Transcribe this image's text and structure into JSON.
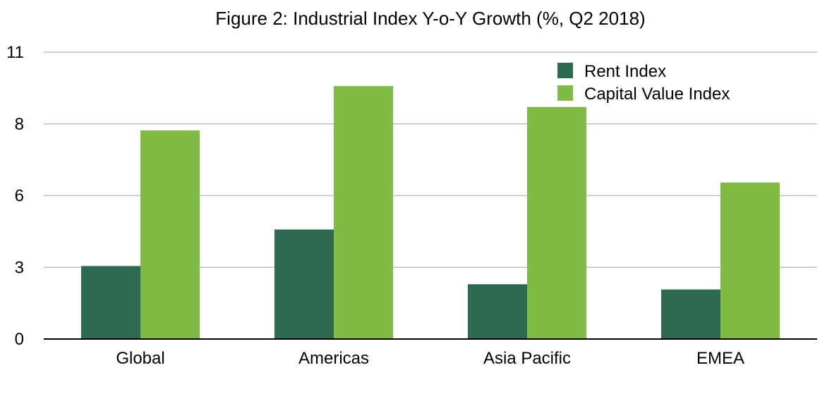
{
  "chart_data": {
    "type": "bar",
    "title": "Figure 2: Industrial Index Y-o-Y Growth (%, Q2 2018)",
    "xlabel": "",
    "ylabel": "",
    "categories": [
      "Global",
      "Americas",
      "Asia Pacific",
      "EMEA"
    ],
    "series": [
      {
        "name": "Rent Index",
        "values": [
          2.8,
          4.2,
          2.1,
          1.9
        ],
        "color": "#2d6a4f"
      },
      {
        "name": "Capital Value Index",
        "values": [
          8.0,
          9.7,
          8.9,
          6.0
        ],
        "color": "#7fbb45"
      }
    ],
    "yticks": [
      {
        "value": 0,
        "label": "0"
      },
      {
        "value": 2.75,
        "label": "3"
      },
      {
        "value": 5.5,
        "label": "6"
      },
      {
        "value": 8.25,
        "label": "8"
      },
      {
        "value": 11,
        "label": "11"
      }
    ],
    "ylim": [
      0,
      11
    ],
    "grid": true,
    "legend_position": "top-right"
  },
  "colors": {
    "grid": "#bfbfbf",
    "axis": "#000000"
  }
}
